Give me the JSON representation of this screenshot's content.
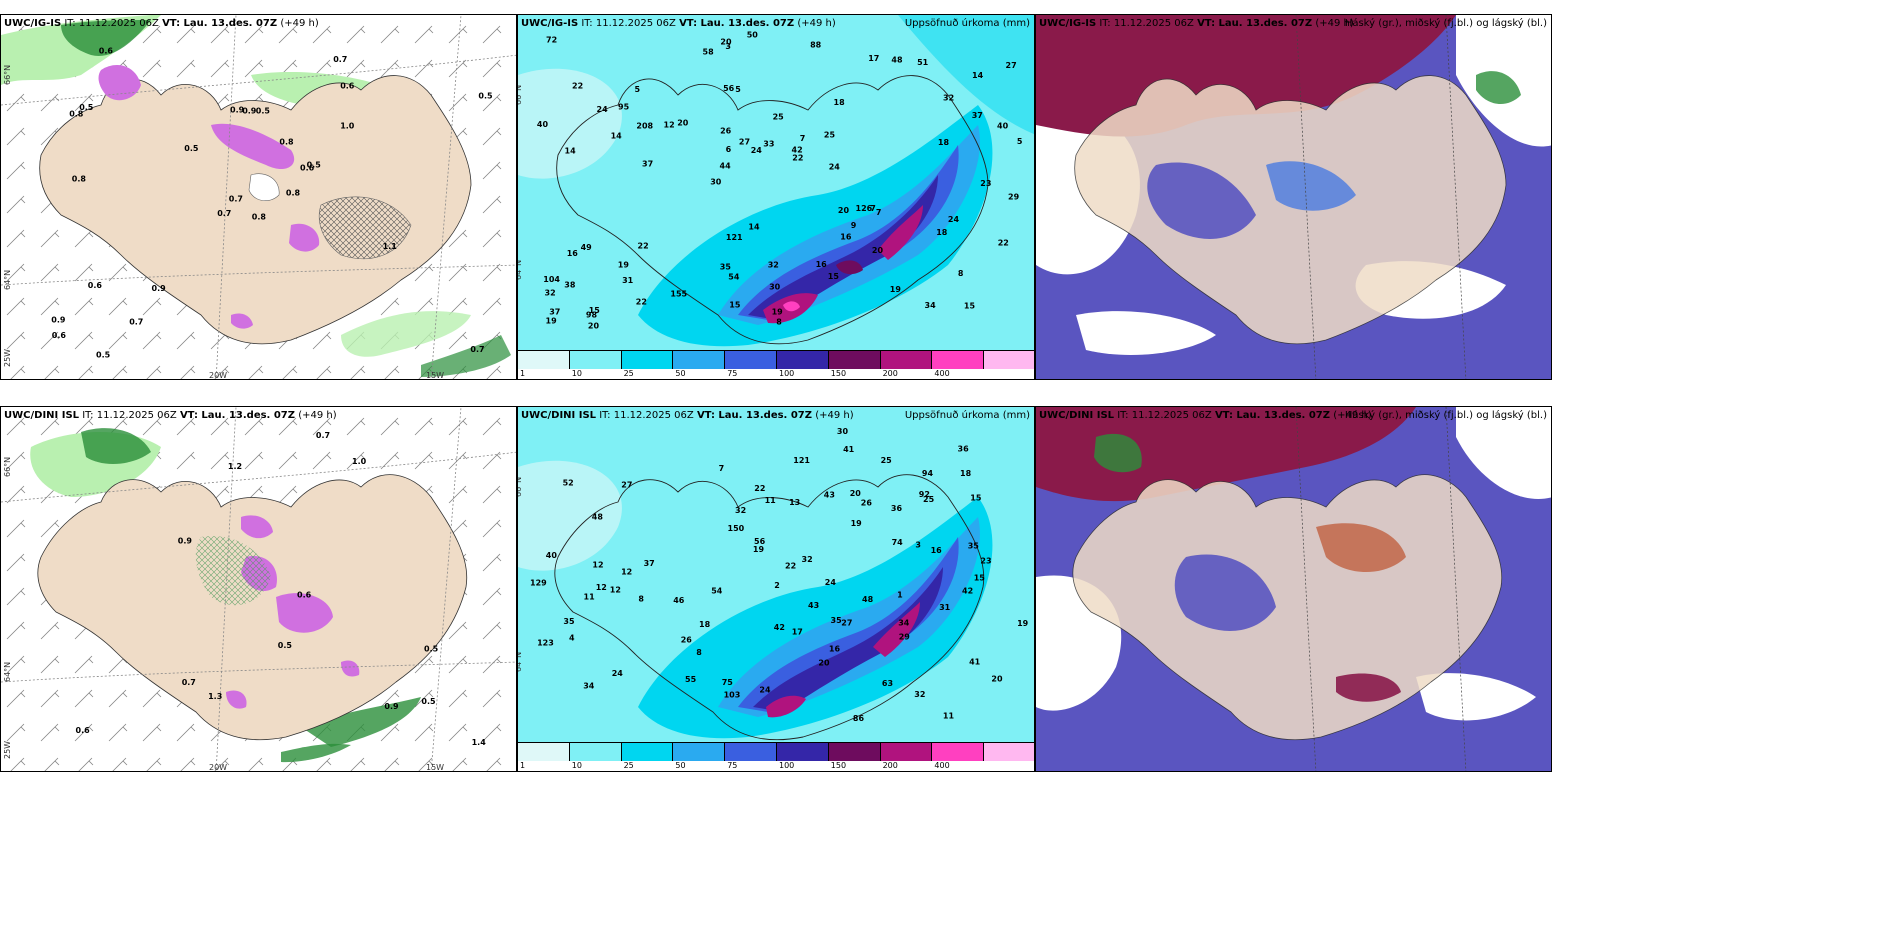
{
  "panels": {
    "p1": {
      "model": "UWC/IG-IS",
      "it": "IT: 11.12.2025 06Z",
      "vt": "VT: Lau. 13.des. 07Z",
      "lead": "(+49 h)",
      "right": ""
    },
    "p2": {
      "model": "UWC/IG-IS",
      "it": "IT: 11.12.2025 06Z",
      "vt": "VT: Lau. 13.des. 07Z",
      "lead": "(+49 h)",
      "right": "Uppsöfnuð úrkoma (mm)"
    },
    "p3": {
      "model": "UWC/IG-IS",
      "it": "IT: 11.12.2025 06Z",
      "vt": "VT: Lau. 13.des. 07Z",
      "lead": "(+49 h)",
      "right": "Háský (gr.), miðský (fj.bl.) og lágský (bl.)"
    },
    "p4": {
      "model": "UWC/DINI ISL",
      "it": "IT: 11.12.2025 06Z",
      "vt": "VT: Lau. 13.des. 07Z",
      "lead": "(+49 h)",
      "right": ""
    },
    "p5": {
      "model": "UWC/DINI ISL",
      "it": "IT: 11.12.2025 06Z",
      "vt": "VT: Lau. 13.des. 07Z",
      "lead": "(+49 h)",
      "right": "Uppsöfnuð úrkoma (mm)"
    },
    "p6": {
      "model": "UWC/DINI ISL",
      "it": "IT: 11.12.2025 06Z",
      "vt": "VT: Lau. 13.des. 07Z",
      "lead": "(+49 h)",
      "right": "Háský (gr.), miðský (fj.bl.) og lágský (bl.)"
    }
  },
  "axes": {
    "lat_n66": "66°N",
    "lat_n64": "64°N",
    "lon_w20": "20W",
    "lon_w15": "15W",
    "lon_w25": "25W"
  },
  "colorbar": {
    "ticks": [
      "1",
      "10",
      "25",
      "50",
      "75",
      "100",
      "150",
      "200",
      "400"
    ],
    "colors": [
      "#dff8f8",
      "#7ff0f5",
      "#00d6f0",
      "#2aaaf0",
      "#3a5fe0",
      "#3426a8",
      "#6e0c5e",
      "#b0137e",
      "#ff40c0",
      "#ffb8f0"
    ]
  },
  "colors": {
    "land": "#efdcc7",
    "coast": "#333333",
    "green_light": "#b9f0b0",
    "green_dark": "#2a8f3a",
    "magenta": "#d070e0",
    "precip_base": "#7ff0f5",
    "cloud_low": "#5a55c0",
    "cloud_mid": "#4a7ae0",
    "cloud_high": "#8a1a4a"
  },
  "precip_labels_top": [
    "15",
    "14",
    "14",
    "30",
    "18",
    "15",
    "56",
    "25",
    "49",
    "20",
    "32",
    "31",
    "5",
    "7",
    "7",
    "22",
    "3",
    "5",
    "20",
    "37",
    "44",
    "35",
    "6",
    "5",
    "17",
    "22",
    "34",
    "8",
    "7",
    "8",
    "12",
    "14",
    "16",
    "22",
    "40",
    "42",
    "37",
    "54",
    "22",
    "16",
    "32",
    "27",
    "9",
    "15",
    "19",
    "20",
    "19",
    "32",
    "51",
    "50",
    "37",
    "40",
    "95",
    "48",
    "98",
    "88",
    "58",
    "27",
    "22",
    "121",
    "155",
    "126",
    "208",
    "104",
    "72",
    "24",
    "29",
    "26",
    "30",
    "33",
    "38",
    "24",
    "24",
    "15",
    "18",
    "14",
    "19",
    "19",
    "16",
    "20",
    "23",
    "25",
    "20",
    "24",
    "18"
  ],
  "precip_labels_bot": [
    "11",
    "12",
    "35",
    "52",
    "41",
    "48",
    "24",
    "46",
    "36",
    "11",
    "26",
    "32",
    "8",
    "7",
    "24",
    "4",
    "1",
    "22",
    "40",
    "34",
    "36",
    "13",
    "3",
    "19",
    "15",
    "12",
    "8",
    "2",
    "19",
    "18",
    "27",
    "11",
    "26",
    "20",
    "32",
    "31",
    "42",
    "63",
    "94",
    "86",
    "18",
    "17",
    "55",
    "30",
    "54",
    "12",
    "15",
    "41",
    "43",
    "42",
    "48",
    "35",
    "34",
    "16",
    "150",
    "129",
    "103",
    "56",
    "43",
    "74",
    "75",
    "92",
    "27",
    "121",
    "123",
    "35",
    "37",
    "32",
    "25",
    "25",
    "29",
    "24",
    "20",
    "20",
    "19",
    "23",
    "22",
    "16",
    "12"
  ],
  "bars_top": [
    "0.8",
    "0.8",
    "0.7",
    "0.9",
    "0.6",
    "0.9",
    "0.7",
    "0.5",
    "0.6",
    "0.8",
    "0.6",
    "0.7",
    "0.8",
    "0.5",
    "0.7",
    "1.0",
    "0.5",
    "0.9",
    "0.8",
    "0.6",
    "0.5",
    "0.6",
    "0.7",
    "0.9",
    "0.5",
    "1.1",
    "0.5"
  ],
  "bars_bot": [
    "0.6",
    "0.5",
    "0.6",
    "0.5",
    "1.2",
    "0.7",
    "0.5",
    "1.0",
    "0.9",
    "0.7",
    "1.4",
    "0.9",
    "1.3"
  ]
}
